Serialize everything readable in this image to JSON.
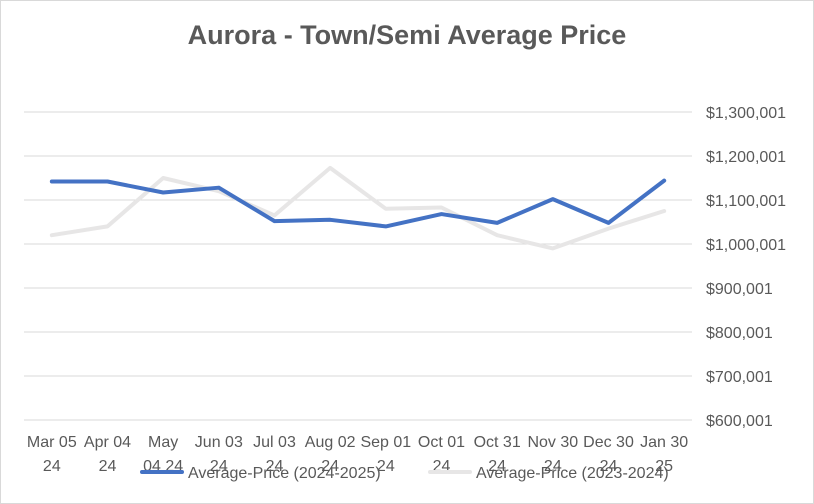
{
  "chart_data": {
    "type": "line",
    "title": "Aurora  - Town/Semi Average Price",
    "x_tick_labels": [
      [
        "Mar 05",
        "24"
      ],
      [
        "Apr 04",
        "24"
      ],
      [
        "May",
        "04 24"
      ],
      [
        "Jun 03",
        "24"
      ],
      [
        "Jul 03",
        "24"
      ],
      [
        "Aug 02",
        "24"
      ],
      [
        "Sep 01",
        "24"
      ],
      [
        "Oct 01",
        "24"
      ],
      [
        "Oct 31",
        "24"
      ],
      [
        "Nov 30",
        "24"
      ],
      [
        "Dec 30",
        "24"
      ],
      [
        "Jan 30",
        "25"
      ]
    ],
    "y_tick_labels": [
      "$600,001",
      "$700,001",
      "$800,001",
      "$900,001",
      "$1,000,001",
      "$1,100,001",
      "$1,200,001",
      "$1,300,001"
    ],
    "ylim": [
      600001,
      1300001
    ],
    "y_axis_position": "right",
    "grid": true,
    "legend_position": "bottom",
    "series": [
      {
        "name": "Average-Price (2024-2025)",
        "color": "#4472c4",
        "values": [
          1142000,
          1142000,
          1117000,
          1128000,
          1052000,
          1055000,
          1040000,
          1068000,
          1048000,
          1102000,
          1048000,
          1144000
        ]
      },
      {
        "name": "Average-Price (2023-2024)",
        "color": "#e7e6e6",
        "values": [
          1020000,
          1040000,
          1150000,
          1120000,
          1065000,
          1173000,
          1080000,
          1083000,
          1020000,
          990000,
          1035000,
          1075000
        ]
      }
    ]
  }
}
